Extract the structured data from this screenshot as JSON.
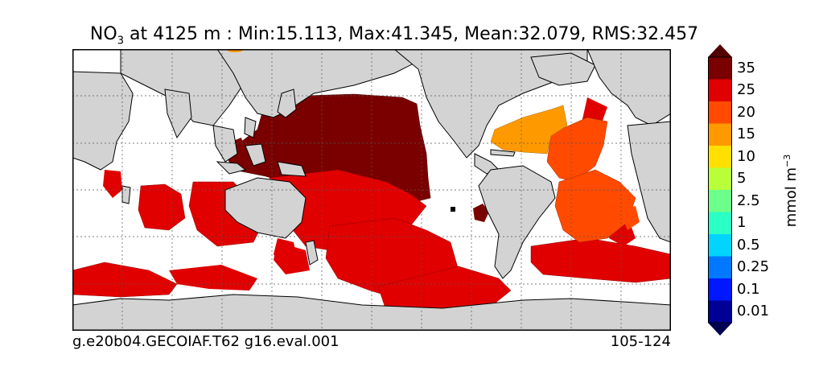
{
  "title": {
    "variable": "NO",
    "subscript": "3",
    "text": " at 4125 m : Min:15.113, Max:41.345, Mean:32.079, RMS:32.457"
  },
  "colorbar": {
    "units_base": "mmol m",
    "units_exp": "−3",
    "labels": [
      "35",
      "25",
      "20",
      "15",
      "10",
      "5",
      "2.5",
      "1",
      "0.5",
      "0.25",
      "0.1",
      "0.01"
    ],
    "colors": [
      "#7a0000",
      "#e00000",
      "#ff4a00",
      "#ff9900",
      "#ffe000",
      "#b8ff3a",
      "#6cff8a",
      "#2affc4",
      "#00d4ff",
      "#0078ff",
      "#0018ff",
      "#000096"
    ],
    "over_color": "#500000",
    "under_color": "#000050"
  },
  "footer": {
    "left": "g.e20b04.GECOIAF.T62 g16.eval.001",
    "right": "105-124"
  },
  "map": {
    "land_color": "#d3d3d3",
    "ocean_nodata_color": "#ffffff",
    "grid": true
  }
}
